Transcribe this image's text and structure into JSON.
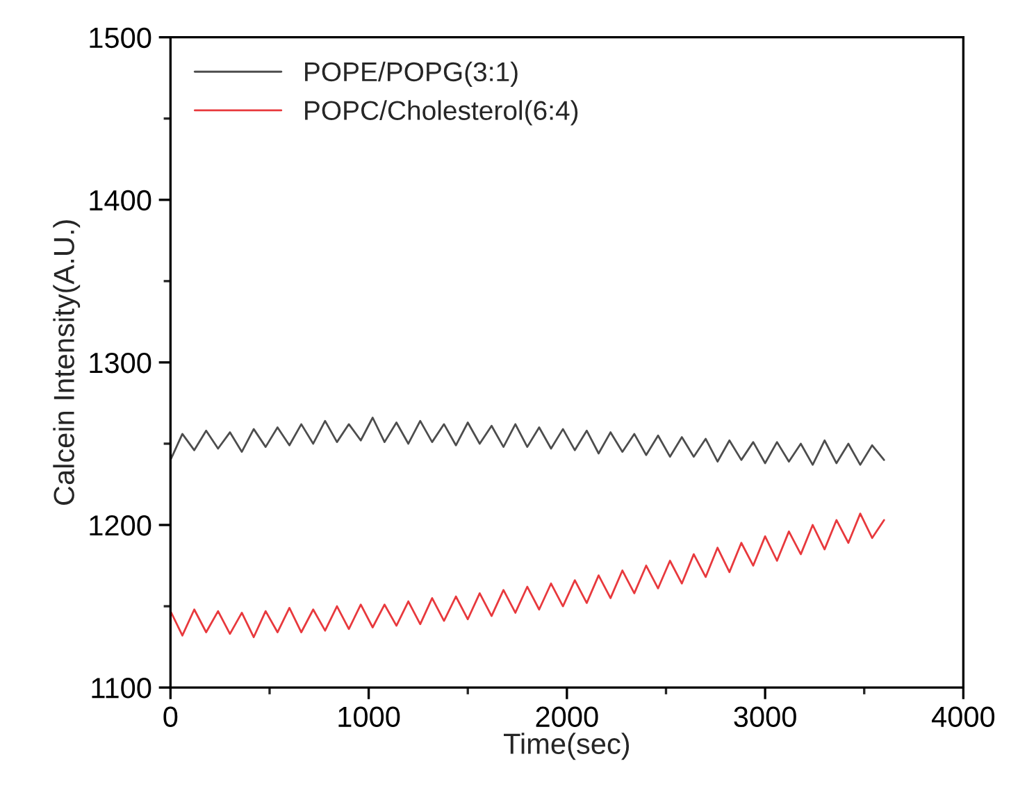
{
  "chart_data": {
    "type": "line",
    "xlabel": "Time(sec)",
    "ylabel": "Calcein Intensity(A.U.)",
    "x": [
      0,
      60,
      120,
      180,
      240,
      300,
      360,
      420,
      480,
      540,
      600,
      660,
      720,
      780,
      840,
      900,
      960,
      1020,
      1080,
      1140,
      1200,
      1260,
      1320,
      1380,
      1440,
      1500,
      1560,
      1620,
      1680,
      1740,
      1800,
      1860,
      1920,
      1980,
      2040,
      2100,
      2160,
      2220,
      2280,
      2340,
      2400,
      2460,
      2520,
      2580,
      2640,
      2700,
      2760,
      2820,
      2880,
      2940,
      3000,
      3060,
      3120,
      3180,
      3240,
      3300,
      3360,
      3420,
      3480,
      3540,
      3600
    ],
    "series": [
      {
        "name": "POPE/POPG(3:1)",
        "color": "#4d4d4d",
        "values": [
          1240,
          1256,
          1246,
          1258,
          1247,
          1257,
          1245,
          1259,
          1248,
          1260,
          1249,
          1262,
          1250,
          1264,
          1251,
          1262,
          1252,
          1266,
          1251,
          1263,
          1250,
          1264,
          1251,
          1262,
          1249,
          1263,
          1250,
          1261,
          1248,
          1262,
          1248,
          1260,
          1247,
          1259,
          1246,
          1258,
          1244,
          1257,
          1245,
          1256,
          1243,
          1255,
          1242,
          1254,
          1242,
          1253,
          1239,
          1252,
          1240,
          1251,
          1238,
          1251,
          1239,
          1250,
          1237,
          1252,
          1238,
          1250,
          1237,
          1249,
          1240
        ]
      },
      {
        "name": "POPC/Cholesterol(6:4)",
        "color": "#e8393d",
        "values": [
          1147,
          1132,
          1148,
          1134,
          1147,
          1133,
          1146,
          1131,
          1147,
          1134,
          1149,
          1134,
          1148,
          1135,
          1150,
          1136,
          1151,
          1137,
          1151,
          1138,
          1153,
          1139,
          1155,
          1141,
          1156,
          1142,
          1158,
          1144,
          1160,
          1146,
          1162,
          1148,
          1164,
          1150,
          1166,
          1152,
          1169,
          1155,
          1172,
          1158,
          1175,
          1161,
          1178,
          1164,
          1182,
          1168,
          1186,
          1171,
          1189,
          1175,
          1193,
          1178,
          1196,
          1182,
          1200,
          1185,
          1203,
          1189,
          1207,
          1192,
          1203
        ]
      }
    ],
    "xlim": [
      0,
      4000
    ],
    "xticks": [
      0,
      1000,
      2000,
      3000,
      4000
    ],
    "ylim": [
      1100,
      1500
    ],
    "yticks": [
      1100,
      1200,
      1300,
      1400,
      1500
    ],
    "grid": false,
    "legend": "top left",
    "marker": "none",
    "line_style": "solid"
  }
}
